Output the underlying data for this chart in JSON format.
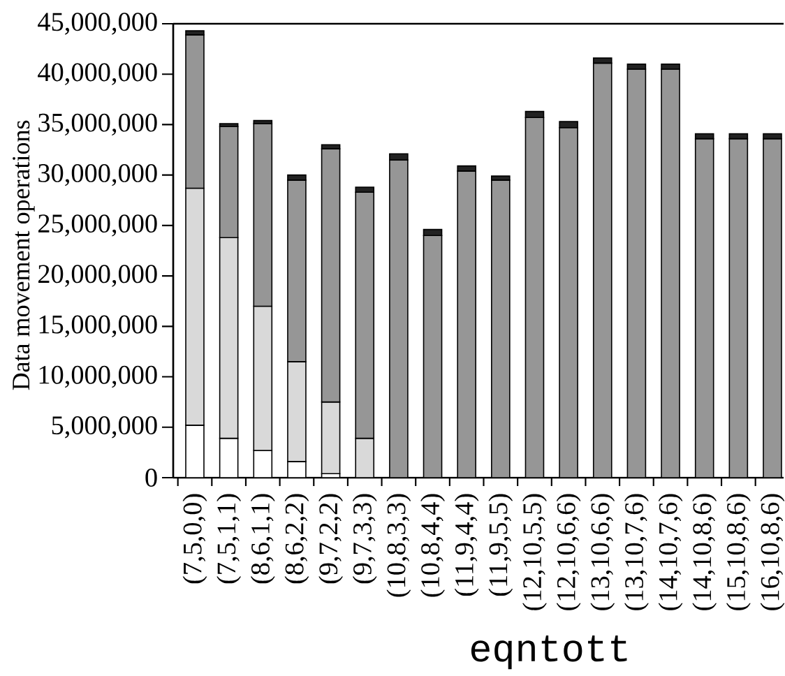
{
  "chart_data": {
    "type": "bar",
    "stacked": true,
    "xlabel": "eqntott",
    "ylabel": "Data movement operations",
    "categories": [
      "(7,5,0,0)",
      "(7,5,1,1)",
      "(8,6,1,1)",
      "(8,6,2,2)",
      "(9,7,2,2)",
      "(9,7,3,3)",
      "(10,8,3,3)",
      "(10,8,4,4)",
      "(11,9,4,4)",
      "(11,9,5,5)",
      "(12,10,5,5)",
      "(12,10,6,6)",
      "(13,10,6,6)",
      "(13,10,7,6)",
      "(14,10,7,6)",
      "(14,10,8,6)",
      "(15,10,8,6)",
      "(16,10,8,6)"
    ],
    "series": [
      {
        "color": "#ffffff",
        "values": [
          5200000,
          3900000,
          2700000,
          1600000,
          400000,
          null,
          null,
          null,
          null,
          null,
          null,
          null,
          null,
          null,
          null,
          null,
          null,
          null
        ]
      },
      {
        "color": "#d9d9d9",
        "values": [
          23500000,
          19900000,
          14300000,
          9900000,
          7100000,
          3900000,
          null,
          null,
          null,
          null,
          null,
          null,
          null,
          null,
          null,
          null,
          null,
          null
        ]
      },
      {
        "color": "#969696",
        "values": [
          15200000,
          11000000,
          18100000,
          18000000,
          25100000,
          24400000,
          31500000,
          24000000,
          30400000,
          29500000,
          35700000,
          34700000,
          41100000,
          40500000,
          40500000,
          33600000,
          33600000,
          33600000
        ]
      },
      {
        "color": "#222222",
        "values": [
          400000,
          300000,
          300000,
          500000,
          400000,
          500000,
          600000,
          600000,
          500000,
          400000,
          600000,
          600000,
          500000,
          500000,
          500000,
          500000,
          500000,
          500000
        ]
      }
    ],
    "ylim": [
      0,
      45000000
    ],
    "yticks": [
      0,
      {
        "value": 5000000,
        "label": "5,000,000"
      },
      {
        "value": 10000000,
        "label": "10,000,000"
      },
      {
        "value": 15000000,
        "label": "15,000,000"
      },
      {
        "value": 20000000,
        "label": "20,000,000"
      },
      {
        "value": 25000000,
        "label": "25,000,000"
      },
      {
        "value": 30000000,
        "label": "30,000,000"
      },
      {
        "value": 35000000,
        "label": "35,000,000"
      },
      {
        "value": 40000000,
        "label": "40,000,000"
      },
      {
        "value": 45000000,
        "label": "45,000,000"
      }
    ]
  }
}
